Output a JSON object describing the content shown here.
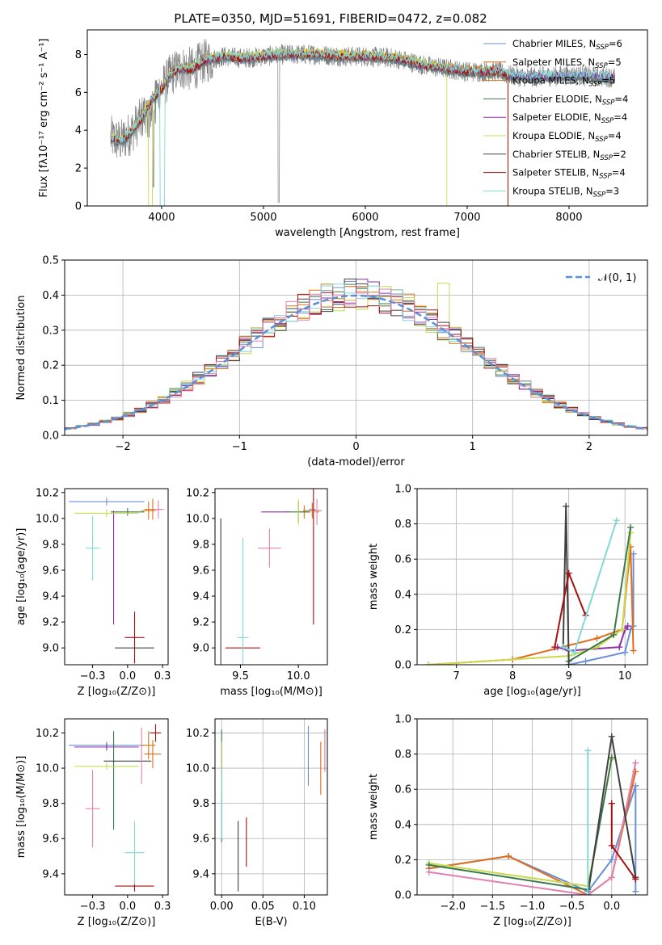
{
  "colors": [
    "#6b8fd6",
    "#e06c1a",
    "#d07a10",
    "#3a7a4a",
    "#8e2ea8",
    "#c8d850",
    "#404040",
    "#a81010",
    "#80d8d8",
    "#e080b0",
    "#808080"
  ],
  "chart_data": [
    {
      "id": "spectrum",
      "type": "line",
      "title": "PLATE=0350, MJD=51691, FIBERID=0472, z=0.082",
      "xlabel": "wavelength [Angstrom, rest frame]",
      "ylabel": "Flux [fλ10⁻¹⁷ erg cm⁻² s⁻¹ A⁻¹]",
      "xlim": [
        3270,
        8770
      ],
      "ylim": [
        0,
        9.3
      ],
      "xticks": [
        4000,
        5000,
        6000,
        7000,
        8000
      ],
      "yticks": [
        0,
        2,
        4,
        6,
        8
      ],
      "legend_position": "top-right",
      "continuum": {
        "x": [
          3500,
          3600,
          3700,
          3800,
          3900,
          4000,
          4100,
          4200,
          4300,
          4400,
          4600,
          4800,
          5000,
          5200,
          5500,
          5800,
          6000,
          6300,
          6600,
          7000,
          7300,
          7400,
          7600,
          8000,
          8400
        ],
        "y": [
          3.6,
          3.4,
          3.9,
          4.6,
          5.6,
          6.2,
          7.0,
          7.3,
          7.2,
          7.6,
          7.9,
          7.8,
          7.9,
          8.0,
          8.0,
          7.9,
          7.9,
          7.8,
          7.4,
          7.1,
          7.1,
          6.9,
          6.8,
          6.9,
          6.8
        ]
      },
      "series": [
        {
          "name": "Chabrier MILES, N_SSP=6",
          "label": "Chabrier MILES, N",
          "sub": "SSP",
          "count": "=6"
        },
        {
          "name": "Salpeter MILES, N_SSP=5",
          "label": "Salpeter MILES, N",
          "sub": "SSP",
          "count": "=5"
        },
        {
          "name": "Kroupa MILES, N_SSP=5",
          "label": "Kroupa MILES, N",
          "sub": "SSP",
          "count": "=5"
        },
        {
          "name": "Chabrier ELODIE, N_SSP=4",
          "label": "Chabrier ELODIE, N",
          "sub": "SSP",
          "count": "=4"
        },
        {
          "name": "Salpeter ELODIE, N_SSP=4",
          "label": "Salpeter ELODIE, N",
          "sub": "SSP",
          "count": "=4"
        },
        {
          "name": "Kroupa ELODIE, N_SSP=4",
          "label": "Kroupa ELODIE, N",
          "sub": "SSP",
          "count": "=4"
        },
        {
          "name": "Chabrier STELIB, N_SSP=2",
          "label": "Chabrier STELIB, N",
          "sub": "SSP",
          "count": "=2"
        },
        {
          "name": "Salpeter STELIB, N_SSP=4",
          "label": "Salpeter STELIB, N",
          "sub": "SSP",
          "count": "=4"
        },
        {
          "name": "Kroupa STELIB, N_SSP=3",
          "label": "Kroupa STELIB, N",
          "sub": "SSP",
          "count": "=3"
        }
      ]
    },
    {
      "id": "residuals",
      "type": "line",
      "xlabel": "(data-model)/error",
      "ylabel": "Normed distribution",
      "xlim": [
        -2.5,
        2.5
      ],
      "ylim": [
        0,
        0.5
      ],
      "xticks": [
        -2,
        -1,
        0,
        1,
        2
      ],
      "yticks": [
        0.0,
        0.1,
        0.2,
        0.3,
        0.4,
        0.5
      ],
      "legend_position": "top-right",
      "normal_label": "𝒩(0, 1)",
      "bin_width": 0.1
    },
    {
      "id": "age_vs_Z",
      "type": "scatter",
      "xlabel": "Z [log₁₀(Z/Z⊙)]",
      "ylabel": "age  [log₁₀(age/yr)]",
      "xlim": [
        -0.45,
        0.29
      ],
      "ylim": [
        8.87,
        10.23
      ],
      "xticks": [
        -0.25,
        0.0,
        0.25
      ],
      "yticks": [
        9.0,
        9.2,
        9.4,
        9.6,
        9.8,
        10.0,
        10.2
      ],
      "points": [
        {
          "x": -0.15,
          "y": 10.13,
          "xerr": 0.27,
          "yerr": 0.03
        },
        {
          "x": 0.18,
          "y": 10.07,
          "xerr": 0.06,
          "yerr": 0.08
        },
        {
          "x": 0.15,
          "y": 10.06,
          "xerr": 0.05,
          "yerr": 0.07
        },
        {
          "x": 0.0,
          "y": 10.05,
          "xerr": 0.12,
          "yerr": 0.03
        },
        {
          "x": -0.1,
          "y": 9.62,
          "xerr": 0.0,
          "yerr": 0.44
        },
        {
          "x": -0.15,
          "y": 10.04,
          "xerr": 0.23,
          "yerr": 0.03
        },
        {
          "x": 0.05,
          "y": 9.0,
          "xerr": 0.14,
          "yerr": 0.0
        },
        {
          "x": 0.05,
          "y": 9.08,
          "xerr": 0.07,
          "yerr": 0.2
        },
        {
          "x": -0.25,
          "y": 9.77,
          "xerr": 0.05,
          "yerr": 0.25
        },
        {
          "x": 0.22,
          "y": 10.07,
          "xerr": 0.04,
          "yerr": 0.07
        }
      ]
    },
    {
      "id": "age_vs_mass",
      "type": "scatter",
      "xlabel": "mass [log₁₀(M/M⊙)]",
      "ylabel": "",
      "xlim": [
        9.28,
        10.25
      ],
      "ylim": [
        8.87,
        10.23
      ],
      "xticks": [
        9.5,
        10.0
      ],
      "yticks": [
        9.0,
        9.2,
        9.4,
        9.6,
        9.8,
        10.0,
        10.2
      ],
      "points": [
        {
          "x": 10.12,
          "y": 10.07,
          "xerr": 0.03,
          "yerr": 0.05
        },
        {
          "x": 10.12,
          "y": 10.06,
          "xerr": 0.08,
          "yerr": 0.06
        },
        {
          "x": 10.05,
          "y": 10.05,
          "xerr": 0.05,
          "yerr": 0.05
        },
        {
          "x": 10.0,
          "y": 10.05,
          "xerr": 0.1,
          "yerr": 0.08
        },
        {
          "x": 9.8,
          "y": 10.05,
          "xerr": 0.12,
          "yerr": 0.0
        },
        {
          "x": 10.0,
          "y": 10.05,
          "xerr": 0.0,
          "yerr": 0.1
        },
        {
          "x": 9.33,
          "y": 9.0,
          "xerr": 0.0,
          "yerr": 1.0
        },
        {
          "x": 9.52,
          "y": 9.0,
          "xerr": 0.15,
          "yerr": 0.0
        },
        {
          "x": 9.52,
          "y": 9.08,
          "xerr": 0.05,
          "yerr": 0.77
        },
        {
          "x": 9.75,
          "y": 9.77,
          "xerr": 0.1,
          "yerr": 0.15
        },
        {
          "x": 10.13,
          "y": 9.9,
          "xerr": 0.0,
          "yerr": 0.72
        },
        {
          "x": 10.16,
          "y": 10.05,
          "xerr": 0.02,
          "yerr": 0.1
        }
      ]
    },
    {
      "id": "massweight_vs_age",
      "type": "line",
      "xlabel": "age  [log₁₀(age/yr)]",
      "ylabel": "mass weight",
      "xlim": [
        6.3,
        10.4
      ],
      "ylim": [
        0,
        1
      ],
      "xticks": [
        7,
        8,
        9,
        10
      ],
      "yticks": [
        0.0,
        0.2,
        0.4,
        0.6,
        0.8,
        1.0
      ],
      "series": [
        {
          "ci": 0,
          "x": [
            9.0,
            9.3,
            10.0,
            10.1,
            10.15,
            10.15
          ],
          "y": [
            0.0,
            0.02,
            0.07,
            0.2,
            0.22,
            0.63
          ]
        },
        {
          "ci": 1,
          "x": [
            6.5,
            8.0,
            9.5,
            9.95,
            10.1,
            10.15
          ],
          "y": [
            0.0,
            0.03,
            0.15,
            0.2,
            0.67,
            0.08
          ]
        },
        {
          "ci": 4,
          "x": [
            8.8,
            9.0,
            9.9,
            10.0,
            10.05
          ],
          "y": [
            0.1,
            0.08,
            0.1,
            0.2,
            0.22
          ]
        },
        {
          "ci": 5,
          "x": [
            6.5,
            9.0,
            9.5,
            9.95,
            10.1
          ],
          "y": [
            0.0,
            0.05,
            0.1,
            0.2,
            0.75
          ]
        },
        {
          "ci": 3,
          "x": [
            9.0,
            9.8,
            10.1
          ],
          "y": [
            0.02,
            0.17,
            0.78
          ]
        },
        {
          "ci": 6,
          "x": [
            8.9,
            8.95,
            9.0
          ],
          "y": [
            0.1,
            0.9,
            0.0
          ]
        },
        {
          "ci": 7,
          "x": [
            8.75,
            9.0,
            9.3
          ],
          "y": [
            0.1,
            0.52,
            0.28
          ]
        },
        {
          "ci": 8,
          "x": [
            8.9,
            9.1,
            9.85
          ],
          "y": [
            0.1,
            0.07,
            0.82
          ]
        }
      ]
    },
    {
      "id": "mass_vs_Z",
      "type": "scatter",
      "xlabel": "Z [log₁₀(Z/Z⊙)]",
      "ylabel": "mass [log₁₀(M/M⊙)]",
      "xlim": [
        -0.45,
        0.29
      ],
      "ylim": [
        9.28,
        10.28
      ],
      "xticks": [
        -0.25,
        0.0,
        0.25
      ],
      "yticks": [
        9.4,
        9.6,
        9.8,
        10.0,
        10.2
      ],
      "points": [
        {
          "x": -0.15,
          "y": 10.13,
          "xerr": 0.27,
          "yerr": 0.02
        },
        {
          "x": 0.18,
          "y": 10.08,
          "xerr": 0.06,
          "yerr": 0.08
        },
        {
          "x": 0.15,
          "y": 10.13,
          "xerr": 0.05,
          "yerr": 0.08
        },
        {
          "x": -0.1,
          "y": 9.93,
          "xerr": 0.0,
          "yerr": 0.28
        },
        {
          "x": -0.15,
          "y": 10.12,
          "xerr": 0.23,
          "yerr": 0.02
        },
        {
          "x": -0.15,
          "y": 10.01,
          "xerr": 0.23,
          "yerr": 0.02
        },
        {
          "x": 0.0,
          "y": 10.04,
          "xerr": 0.17,
          "yerr": 0.0
        },
        {
          "x": 0.05,
          "y": 9.33,
          "xerr": 0.14,
          "yerr": 0.03
        },
        {
          "x": 0.05,
          "y": 9.52,
          "xerr": 0.07,
          "yerr": 0.18
        },
        {
          "x": -0.25,
          "y": 9.77,
          "xerr": 0.05,
          "yerr": 0.22
        },
        {
          "x": 0.2,
          "y": 10.2,
          "xerr": 0.04,
          "yerr": 0.05
        },
        {
          "x": 0.1,
          "y": 10.07,
          "xerr": 0.0,
          "yerr": 0.16
        }
      ]
    },
    {
      "id": "mass_vs_EBV",
      "type": "scatter",
      "xlabel": "E(B-V)",
      "ylabel": "",
      "xlim": [
        -0.008,
        0.128
      ],
      "ylim": [
        9.28,
        10.28
      ],
      "xticks": [
        0.0,
        0.05,
        0.1
      ],
      "xticklabels": [
        "0.00",
        "0.05",
        "0.10"
      ],
      "yticks": [
        9.4,
        9.6,
        9.8,
        10.0,
        10.2
      ],
      "points": [
        {
          "x": 0.105,
          "y": 10.07,
          "xerr": 0.0,
          "yerr": 0.17
        },
        {
          "x": 0.12,
          "y": 10.0,
          "xerr": 0.0,
          "yerr": 0.15
        },
        {
          "x": 0.125,
          "y": 10.1,
          "xerr": 0.0,
          "yerr": 0.12
        },
        {
          "x": 0.0,
          "y": 9.9,
          "xerr": 0.0,
          "yerr": 0.32
        },
        {
          "x": 0.0,
          "y": 10.05,
          "xerr": 0.0,
          "yerr": 0.1
        },
        {
          "x": 0.0,
          "y": 10.0,
          "xerr": 0.0,
          "yerr": 0.15
        },
        {
          "x": 0.02,
          "y": 9.5,
          "xerr": 0.0,
          "yerr": 0.2
        },
        {
          "x": 0.03,
          "y": 9.58,
          "xerr": 0.0,
          "yerr": 0.14
        },
        {
          "x": 0.0,
          "y": 9.8,
          "xerr": 0.0,
          "yerr": 0.2
        },
        {
          "x": 0.125,
          "y": 10.1,
          "xerr": 0.0,
          "yerr": 0.12
        }
      ]
    },
    {
      "id": "massweight_vs_Z",
      "type": "line",
      "xlabel": "Z [log₁₀(Z/Z⊙)]",
      "ylabel": "mass weight",
      "xlim": [
        -2.45,
        0.45
      ],
      "ylim": [
        0,
        1
      ],
      "xticks": [
        -2.0,
        -1.5,
        -1.0,
        -0.5,
        0.0
      ],
      "yticks": [
        0.0,
        0.2,
        0.4,
        0.6,
        0.8,
        1.0
      ],
      "series": [
        {
          "ci": 0,
          "x": [
            -2.3,
            -1.3,
            -0.3,
            0.0,
            0.3,
            0.3
          ],
          "y": [
            0.15,
            0.22,
            0.02,
            0.2,
            0.62,
            0.02
          ]
        },
        {
          "ci": 1,
          "x": [
            -2.3,
            -1.3,
            -0.3,
            0.0,
            0.3
          ],
          "y": [
            0.15,
            0.22,
            0.0,
            0.1,
            0.7
          ]
        },
        {
          "ci": 9,
          "x": [
            -2.3,
            -0.3,
            0.0,
            0.3
          ],
          "y": [
            0.13,
            0.0,
            0.1,
            0.75
          ]
        },
        {
          "ci": 5,
          "x": [
            -2.3,
            -0.3,
            0.0
          ],
          "y": [
            0.18,
            0.05,
            0.77
          ]
        },
        {
          "ci": 3,
          "x": [
            -2.3,
            -0.3,
            0.0
          ],
          "y": [
            0.17,
            0.03,
            0.78
          ]
        },
        {
          "ci": 6,
          "x": [
            -0.3,
            0.0,
            0.3
          ],
          "y": [
            0.0,
            0.9,
            0.1
          ]
        },
        {
          "ci": 7,
          "x": [
            0.0,
            0.0,
            0.3
          ],
          "y": [
            0.52,
            0.28,
            0.09
          ]
        },
        {
          "ci": 8,
          "x": [
            -0.3,
            -0.3
          ],
          "y": [
            0.82,
            0.0
          ]
        }
      ]
    }
  ]
}
